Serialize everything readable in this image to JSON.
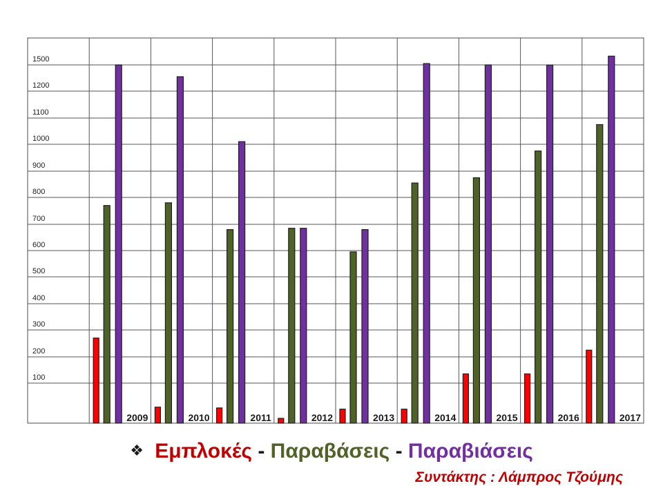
{
  "chart_data": {
    "type": "bar",
    "categories": [
      "2009",
      "2010",
      "2011",
      "2012",
      "2013",
      "2014",
      "2015",
      "2016",
      "2017"
    ],
    "y_tick_labels": [
      "100",
      "200",
      "300",
      "400",
      "500",
      "600",
      "700",
      "800",
      "900",
      "1000",
      "1100",
      "1200",
      "1500"
    ],
    "series": [
      {
        "name": "Εμπλοκές",
        "color": "#ff0000",
        "values": [
          270,
          40,
          38,
          12,
          35,
          35,
          135,
          135,
          225
        ]
      },
      {
        "name": "Παραβάσεις",
        "color": "#4f6228",
        "values": [
          770,
          780,
          680,
          685,
          595,
          855,
          875,
          975,
          1075
        ]
      },
      {
        "name": "Παραβιάσεις",
        "color": "#7030a0",
        "values": [
          1500,
          1365,
          1010,
          685,
          680,
          1515,
          1500,
          1498,
          1600
        ]
      }
    ],
    "legend_position": "bottom",
    "grid": true
  },
  "legend": {
    "bullet": "❖",
    "item1": "Εμπλοκές",
    "sep1": " - ",
    "item2": "Παραβάσεις",
    "sep2": " - ",
    "item3": "Παραβιάσεις",
    "colors": {
      "item1": "#c00000",
      "item2": "#4f6228",
      "item3": "#7030a0"
    }
  },
  "author": "Συντάκτης : Λάμπρος Τζούμης"
}
